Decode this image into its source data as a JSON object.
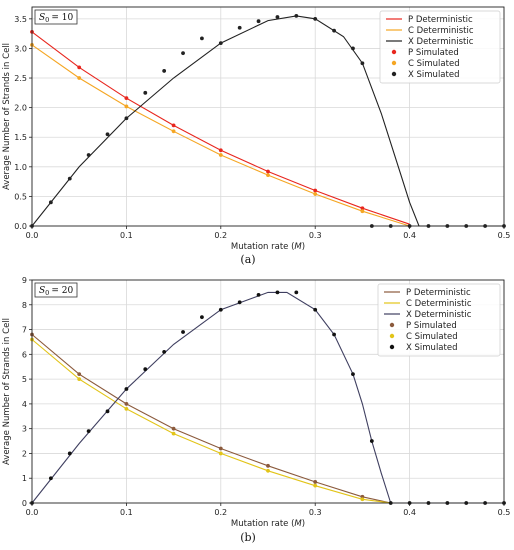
{
  "chart_data": [
    {
      "type": "line",
      "panel_label": "(a)",
      "parameter_label": "S0 = 10",
      "parameter_symbol": "S",
      "parameter_sub": "0",
      "parameter_value": "= 10",
      "xlabel": "Mutation rate (M)",
      "xlabel_text": "Mutation rate (",
      "xlabel_italic": "M",
      "xlabel_tail": ")",
      "ylabel": "Average Number of Strands in Cell",
      "xlim": [
        0,
        0.5
      ],
      "ylim": [
        0,
        3.7
      ],
      "xticks": [
        0.0,
        0.1,
        0.2,
        0.3,
        0.4,
        0.5
      ],
      "xtick_labels": [
        "0.0",
        "0.1",
        "0.2",
        "0.3",
        "0.4",
        "0.5"
      ],
      "yticks": [
        0,
        0.5,
        1.0,
        1.5,
        2.0,
        2.5,
        3.0,
        3.5
      ],
      "ytick_labels": [
        "0.0",
        "0.5",
        "1.0",
        "1.5",
        "2.0",
        "2.5",
        "3.0",
        "3.5"
      ],
      "grid": true,
      "legend_position": "top-right",
      "legend": [
        "P Deterministic",
        "C Deterministic",
        "X Deterministic",
        "P Simulated",
        "C Simulated",
        "X Simulated"
      ],
      "series": [
        {
          "name": "P Deterministic",
          "kind": "line",
          "color": "#e8261e",
          "x": [
            0,
            0.05,
            0.1,
            0.15,
            0.2,
            0.25,
            0.3,
            0.35,
            0.4
          ],
          "y": [
            3.28,
            2.68,
            2.16,
            1.7,
            1.28,
            0.92,
            0.6,
            0.3,
            0.03
          ]
        },
        {
          "name": "C Deterministic",
          "kind": "line",
          "color": "#f5a623",
          "x": [
            0,
            0.05,
            0.1,
            0.15,
            0.2,
            0.25,
            0.3,
            0.35,
            0.4
          ],
          "y": [
            3.06,
            2.5,
            2.02,
            1.6,
            1.2,
            0.86,
            0.54,
            0.25,
            0.0
          ]
        },
        {
          "name": "X Deterministic",
          "kind": "line",
          "color": "#222222",
          "x": [
            0,
            0.05,
            0.1,
            0.15,
            0.2,
            0.25,
            0.28,
            0.3,
            0.33,
            0.35,
            0.37,
            0.39,
            0.4,
            0.41,
            0.5
          ],
          "y": [
            0,
            1.0,
            1.82,
            2.5,
            3.09,
            3.47,
            3.55,
            3.5,
            3.2,
            2.75,
            1.9,
            0.9,
            0.4,
            0.0,
            0.0
          ]
        },
        {
          "name": "P Simulated",
          "kind": "scatter",
          "color": "#e8261e",
          "x": [
            0,
            0.05,
            0.1,
            0.15,
            0.2,
            0.25,
            0.3,
            0.35
          ],
          "y": [
            3.28,
            2.68,
            2.16,
            1.7,
            1.28,
            0.92,
            0.6,
            0.3
          ]
        },
        {
          "name": "C Simulated",
          "kind": "scatter",
          "color": "#f5a623",
          "x": [
            0,
            0.05,
            0.1,
            0.15,
            0.2,
            0.25,
            0.3,
            0.35
          ],
          "y": [
            3.06,
            2.5,
            2.02,
            1.6,
            1.2,
            0.86,
            0.54,
            0.25
          ]
        },
        {
          "name": "X Simulated",
          "kind": "scatter",
          "color": "#222222",
          "x": [
            0,
            0.02,
            0.04,
            0.06,
            0.08,
            0.1,
            0.12,
            0.14,
            0.16,
            0.18,
            0.2,
            0.22,
            0.24,
            0.26,
            0.28,
            0.3,
            0.32,
            0.34,
            0.35,
            0.36,
            0.38,
            0.4,
            0.42,
            0.44,
            0.46,
            0.48,
            0.5
          ],
          "y": [
            0,
            0.4,
            0.8,
            1.2,
            1.55,
            1.82,
            2.25,
            2.62,
            2.92,
            3.17,
            3.09,
            3.35,
            3.46,
            3.53,
            3.55,
            3.5,
            3.3,
            3.0,
            2.75,
            0.0,
            0.0,
            0.0,
            0.0,
            0.0,
            0.0,
            0.0,
            0.0
          ]
        }
      ]
    },
    {
      "type": "line",
      "panel_label": "(b)",
      "parameter_label": "S0 = 20",
      "parameter_symbol": "S",
      "parameter_sub": "0",
      "parameter_value": "= 20",
      "xlabel": "Mutation rate (M)",
      "xlabel_text": "Mutation rate (",
      "xlabel_italic": "M",
      "xlabel_tail": ")",
      "ylabel": "Average Number of Strands in Cell",
      "xlim": [
        0,
        0.5
      ],
      "ylim": [
        0,
        9
      ],
      "xticks": [
        0.0,
        0.1,
        0.2,
        0.3,
        0.4,
        0.5
      ],
      "xtick_labels": [
        "0.0",
        "0.1",
        "0.2",
        "0.3",
        "0.4",
        "0.5"
      ],
      "yticks": [
        0,
        1,
        2,
        3,
        4,
        5,
        6,
        7,
        8,
        9
      ],
      "ytick_labels": [
        "0",
        "1",
        "2",
        "3",
        "4",
        "5",
        "6",
        "7",
        "8",
        "9"
      ],
      "grid": true,
      "legend_position": "top-right",
      "legend": [
        "P Deterministic",
        "C Deterministic",
        "X Deterministic",
        "P Simulated",
        "C Simulated",
        "X Simulated"
      ],
      "series": [
        {
          "name": "P Deterministic",
          "kind": "line",
          "color": "#8b5a3c",
          "x": [
            0,
            0.05,
            0.1,
            0.15,
            0.2,
            0.25,
            0.3,
            0.35,
            0.38
          ],
          "y": [
            6.8,
            5.2,
            4.0,
            3.0,
            2.2,
            1.5,
            0.85,
            0.25,
            0.0
          ]
        },
        {
          "name": "C Deterministic",
          "kind": "line",
          "color": "#e2c418",
          "x": [
            0,
            0.05,
            0.1,
            0.15,
            0.2,
            0.25,
            0.3,
            0.35,
            0.38
          ],
          "y": [
            6.6,
            5.0,
            3.8,
            2.8,
            2.0,
            1.3,
            0.7,
            0.15,
            0.0
          ]
        },
        {
          "name": "X Deterministic",
          "kind": "line",
          "color": "#3f3f60",
          "x": [
            0,
            0.05,
            0.1,
            0.15,
            0.2,
            0.25,
            0.27,
            0.3,
            0.32,
            0.34,
            0.35,
            0.36,
            0.37,
            0.38,
            0.5
          ],
          "y": [
            0,
            2.4,
            4.6,
            6.4,
            7.8,
            8.5,
            8.5,
            7.8,
            6.8,
            5.2,
            4.0,
            2.5,
            1.2,
            0.0,
            0.0
          ]
        },
        {
          "name": "P Simulated",
          "kind": "scatter",
          "color": "#8b5a3c",
          "x": [
            0,
            0.05,
            0.1,
            0.15,
            0.2,
            0.25,
            0.3,
            0.35
          ],
          "y": [
            6.8,
            5.2,
            4.0,
            3.0,
            2.2,
            1.5,
            0.85,
            0.25
          ]
        },
        {
          "name": "C Simulated",
          "kind": "scatter",
          "color": "#e2c418",
          "x": [
            0,
            0.05,
            0.1,
            0.15,
            0.2,
            0.25,
            0.3,
            0.35
          ],
          "y": [
            6.6,
            5.0,
            3.8,
            2.8,
            2.0,
            1.3,
            0.7,
            0.15
          ]
        },
        {
          "name": "X Simulated",
          "kind": "scatter",
          "color": "#111111",
          "x": [
            0,
            0.02,
            0.04,
            0.06,
            0.08,
            0.1,
            0.12,
            0.14,
            0.16,
            0.18,
            0.2,
            0.22,
            0.24,
            0.26,
            0.28,
            0.3,
            0.32,
            0.34,
            0.36,
            0.38,
            0.4,
            0.42,
            0.44,
            0.46,
            0.48,
            0.5
          ],
          "y": [
            0,
            1.0,
            2.0,
            2.9,
            3.7,
            4.6,
            5.4,
            6.1,
            6.9,
            7.5,
            7.8,
            8.1,
            8.4,
            8.5,
            8.5,
            7.8,
            6.8,
            5.2,
            2.5,
            0.0,
            0.0,
            0.0,
            0.0,
            0.0,
            0.0,
            0.0
          ]
        }
      ]
    }
  ]
}
